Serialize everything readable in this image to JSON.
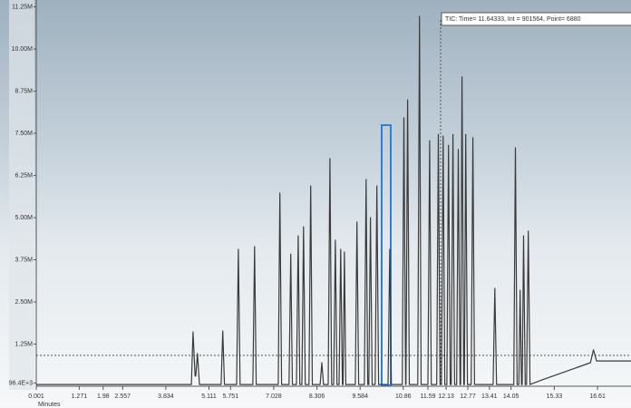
{
  "chart_data": {
    "type": "line",
    "x_label": "Minutes",
    "cursor_label": "TIC: Time= 11.64333, Int = 901564, Point= 6880",
    "color": "#3a3a3a",
    "x": [
      0,
      4.4,
      4.59,
      4.64,
      4.7,
      4.72,
      4.77,
      4.83,
      5.47,
      5.52,
      5.57,
      5.93,
      5.98,
      6.03,
      6.41,
      6.46,
      6.51,
      7.16,
      7.21,
      7.26,
      7.48,
      7.53,
      7.58,
      7.7,
      7.75,
      7.8,
      7.86,
      7.91,
      7.96,
      8.07,
      8.12,
      8.17,
      8.4,
      8.45,
      8.5,
      8.64,
      8.69,
      8.74,
      8.8,
      8.85,
      8.9,
      8.96,
      9.01,
      9.06,
      9.08,
      9.12,
      9.16,
      9.44,
      9.49,
      9.54,
      9.71,
      9.76,
      9.81,
      9.84,
      9.89,
      9.94,
      10.03,
      10.08,
      10.13,
      10.41,
      10.46,
      10.51,
      10.83,
      10.88,
      10.93,
      10.94,
      10.99,
      11.04,
      11.29,
      11.34,
      11.39,
      11.59,
      11.64,
      11.69,
      11.85,
      11.9,
      11.95,
      11.99,
      12.04,
      12.09,
      12.15,
      12.2,
      12.25,
      12.28,
      12.33,
      12.38,
      12.44,
      12.49,
      12.54,
      12.56,
      12.6,
      12.65,
      12.67,
      12.71,
      12.76,
      12.87,
      12.92,
      12.97,
      13.52,
      13.57,
      13.62,
      14.13,
      14.18,
      14.23,
      14.28,
      14.32,
      14.36,
      14.38,
      14.42,
      14.47,
      14.51,
      14.56,
      14.61,
      15.0,
      16.4,
      16.49,
      16.58,
      17.6
    ],
    "values": [
      0.05,
      0.05,
      0.05,
      1.61,
      0.3,
      0.3,
      0.97,
      0.05,
      0.05,
      1.64,
      0.05,
      0.05,
      4.06,
      0.05,
      0.05,
      4.14,
      0.05,
      0.05,
      5.73,
      0.05,
      0.05,
      3.92,
      0.05,
      0.05,
      4.46,
      0.05,
      0.05,
      4.73,
      0.05,
      0.05,
      5.94,
      0.05,
      0.05,
      0.7,
      0.05,
      0.05,
      6.75,
      0.05,
      0.05,
      4.33,
      0.05,
      0.05,
      4.06,
      0.05,
      0.05,
      3.98,
      0.05,
      0.05,
      4.87,
      0.05,
      0.05,
      6.13,
      0.05,
      0.05,
      5.0,
      0.05,
      0.05,
      5.94,
      0.05,
      0.05,
      4.06,
      0.05,
      0.05,
      7.96,
      0.05,
      0.05,
      8.49,
      0.05,
      0.05,
      10.97,
      0.05,
      0.05,
      7.28,
      0.05,
      0.05,
      7.47,
      0.05,
      0.05,
      7.42,
      0.05,
      0.05,
      7.15,
      0.05,
      0.05,
      7.47,
      0.05,
      0.05,
      7.02,
      0.05,
      0.05,
      9.17,
      0.05,
      0.05,
      7.47,
      0.05,
      0.05,
      7.37,
      0.05,
      0.05,
      2.9,
      0.05,
      0.05,
      7.07,
      0.05,
      0.05,
      2.85,
      0.05,
      0.05,
      4.46,
      0.05,
      0.05,
      4.6,
      0.05,
      0.2,
      0.7,
      1.08,
      0.75,
      0.75
    ],
    "xlim": [
      0,
      17.6
    ],
    "ylim": [
      0,
      11.4
    ],
    "xticks": [
      0.001,
      1.271,
      1.98,
      2.557,
      3.834,
      5.111,
      5.751,
      7.028,
      8.306,
      9.584,
      10.86,
      11.59,
      12.13,
      12.77,
      13.41,
      14.05,
      15.33,
      16.61
    ],
    "yticks": [
      {
        "value": 0.0964,
        "label": "96.4E+3"
      },
      {
        "value": 1.25,
        "label": "1.25M"
      },
      {
        "value": 2.5,
        "label": "2.50M"
      },
      {
        "value": 3.75,
        "label": "3.75M"
      },
      {
        "value": 5.0,
        "label": "5.00M"
      },
      {
        "value": 6.25,
        "label": "6.25M"
      },
      {
        "value": 7.5,
        "label": "7.50M"
      },
      {
        "value": 8.75,
        "label": "8.75M"
      },
      {
        "value": 10.0,
        "label": "10.00M"
      },
      {
        "value": 11.25,
        "label": "11.25M"
      }
    ]
  }
}
